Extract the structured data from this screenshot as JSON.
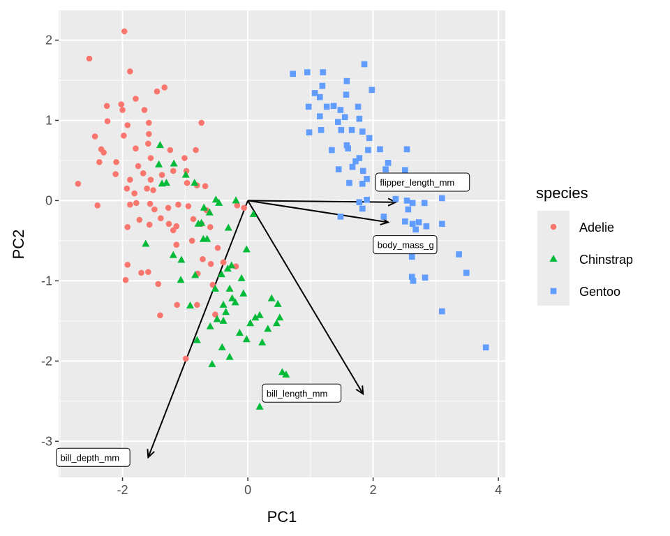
{
  "chart_data": {
    "type": "scatter",
    "xlabel": "PC1",
    "ylabel": "PC2",
    "xlim": [
      -3.02,
      4.11
    ],
    "ylim": [
      -3.45,
      2.37
    ],
    "xticks": [
      -2,
      0,
      2,
      4
    ],
    "yticks": [
      -3,
      -2,
      -1,
      0,
      1,
      2
    ],
    "grid": true,
    "legend": {
      "title": "species",
      "placement": "right"
    },
    "colors": {
      "panel": "#EBEBEB",
      "grid": "#FFFFFF",
      "arrow": "#000000"
    },
    "series": [
      {
        "name": "Adelie",
        "color": "#F8766D",
        "marker": "circle",
        "points": [
          [
            -1.97,
            2.11
          ],
          [
            -2.53,
            1.77
          ],
          [
            -1.88,
            1.61
          ],
          [
            -1.33,
            1.41
          ],
          [
            -1.45,
            1.36
          ],
          [
            -1.79,
            1.27
          ],
          [
            -2.25,
            1.18
          ],
          [
            -2.02,
            1.2
          ],
          [
            -2.0,
            1.13
          ],
          [
            -1.65,
            1.13
          ],
          [
            -2.24,
            0.99
          ],
          [
            -1.92,
            0.94
          ],
          [
            -1.58,
            0.97
          ],
          [
            -0.74,
            0.97
          ],
          [
            -2.44,
            0.8
          ],
          [
            -1.98,
            0.81
          ],
          [
            -1.58,
            0.83
          ],
          [
            -2.34,
            0.64
          ],
          [
            -2.3,
            0.6
          ],
          [
            -1.79,
            0.65
          ],
          [
            -1.59,
            0.71
          ],
          [
            -1.24,
            0.63
          ],
          [
            -0.83,
            0.63
          ],
          [
            -2.37,
            0.48
          ],
          [
            -2.1,
            0.48
          ],
          [
            -1.75,
            0.43
          ],
          [
            -1.55,
            0.53
          ],
          [
            -1.01,
            0.53
          ],
          [
            -2.71,
            0.21
          ],
          [
            -2.4,
            -0.06
          ],
          [
            -2.11,
            0.33
          ],
          [
            -1.88,
            0.26
          ],
          [
            -1.67,
            0.34
          ],
          [
            -1.55,
            0.26
          ],
          [
            -1.37,
            0.32
          ],
          [
            -1.19,
            0.37
          ],
          [
            -0.98,
            0.37
          ],
          [
            -1.93,
            0.15
          ],
          [
            -1.81,
            0.09
          ],
          [
            -1.61,
            0.15
          ],
          [
            -1.51,
            0.13
          ],
          [
            -0.97,
            0.22
          ],
          [
            -0.81,
            0.19
          ],
          [
            -0.68,
            0.18
          ],
          [
            -1.88,
            -0.05
          ],
          [
            -1.78,
            -0.03
          ],
          [
            -1.56,
            -0.04
          ],
          [
            -1.49,
            -0.11
          ],
          [
            -1.27,
            -0.09
          ],
          [
            -1.11,
            -0.05
          ],
          [
            -0.95,
            -0.07
          ],
          [
            -1.92,
            -0.33
          ],
          [
            -1.73,
            -0.24
          ],
          [
            -1.57,
            -0.3
          ],
          [
            -1.39,
            -0.22
          ],
          [
            -1.26,
            -0.29
          ],
          [
            -1.19,
            -0.37
          ],
          [
            -1.14,
            -0.32
          ],
          [
            -0.87,
            -0.23
          ],
          [
            -0.74,
            -0.29
          ],
          [
            -0.6,
            -0.33
          ],
          [
            -1.92,
            -0.8
          ],
          [
            -1.7,
            -0.9
          ],
          [
            -1.59,
            -0.89
          ],
          [
            -1.95,
            -0.99
          ],
          [
            -1.43,
            -1.04
          ],
          [
            -1.4,
            -1.43
          ],
          [
            -0.99,
            -1.97
          ],
          [
            -1.13,
            -1.3
          ],
          [
            -0.81,
            -1.3
          ],
          [
            -0.56,
            -1.05
          ],
          [
            -0.59,
            -0.79
          ],
          [
            -0.39,
            -0.77
          ],
          [
            -0.17,
            -0.06
          ],
          [
            -0.48,
            -0.59
          ],
          [
            -1.14,
            -0.55
          ],
          [
            -0.89,
            -0.5
          ],
          [
            -0.66,
            -0.12
          ],
          [
            -0.06,
            -0.09
          ],
          [
            -0.72,
            -0.73
          ],
          [
            -0.19,
            -0.82
          ],
          [
            -0.52,
            -1.42
          ],
          [
            -0.8,
            -0.91
          ]
        ]
      },
      {
        "name": "Chinstrap",
        "color": "#00BA38",
        "marker": "triangle",
        "points": [
          [
            -1.4,
            0.69
          ],
          [
            -1.42,
            0.45
          ],
          [
            -1.18,
            0.46
          ],
          [
            -1.37,
            0.21
          ],
          [
            -1.3,
            0.22
          ],
          [
            -0.99,
            0.32
          ],
          [
            -0.85,
            0.22
          ],
          [
            -0.51,
            0.01
          ],
          [
            -0.46,
            -0.03
          ],
          [
            -0.19,
            0
          ],
          [
            -0.7,
            -0.09
          ],
          [
            -0.61,
            -0.15
          ],
          [
            -0.74,
            -0.28
          ],
          [
            -0.79,
            -0.29
          ],
          [
            -0.31,
            -0.34
          ],
          [
            -0.71,
            -0.48
          ],
          [
            -0.65,
            -0.48
          ],
          [
            0.09,
            -0.17
          ],
          [
            -1.63,
            -0.54
          ],
          [
            -1.19,
            -0.68
          ],
          [
            -1.06,
            -0.74
          ],
          [
            -0.32,
            -0.85
          ],
          [
            -0.02,
            -0.61
          ],
          [
            -1.07,
            -0.99
          ],
          [
            -0.84,
            -0.93
          ],
          [
            -0.42,
            -0.92
          ],
          [
            -0.1,
            -0.97
          ],
          [
            -0.92,
            -1.31
          ],
          [
            -0.52,
            -1.1
          ],
          [
            -0.29,
            -1.1
          ],
          [
            -0.07,
            -1.16
          ],
          [
            -0.39,
            -1.3
          ],
          [
            -0.2,
            -1.27
          ],
          [
            -0.35,
            -1.39
          ],
          [
            -0.25,
            -1.22
          ],
          [
            -0.49,
            -1.48
          ],
          [
            -0.39,
            -1.5
          ],
          [
            -0.6,
            -1.57
          ],
          [
            -0.81,
            -1.74
          ],
          [
            -0.57,
            -2.04
          ],
          [
            -0.41,
            -1.83
          ],
          [
            -0.29,
            -1.95
          ],
          [
            0.04,
            -1.53
          ],
          [
            0.12,
            -1.46
          ],
          [
            0.19,
            -1.43
          ],
          [
            0.38,
            -1.22
          ],
          [
            0.48,
            -1.29
          ],
          [
            0.51,
            -1.46
          ],
          [
            0.46,
            -1.53
          ],
          [
            0.32,
            -1.6
          ],
          [
            -0.13,
            -1.65
          ],
          [
            -0.02,
            -1.73
          ],
          [
            0.23,
            -1.77
          ],
          [
            0.55,
            -2.14
          ],
          [
            0.61,
            -2.17
          ],
          [
            0.19,
            -2.57
          ],
          [
            -0.26,
            -0.81
          ]
        ]
      },
      {
        "name": "Gentoo",
        "color": "#619CFF",
        "marker": "square",
        "points": [
          [
            0.72,
            1.58
          ],
          [
            0.95,
            1.6
          ],
          [
            1.2,
            1.6
          ],
          [
            1.86,
            1.7
          ],
          [
            1.19,
            1.43
          ],
          [
            1.58,
            1.49
          ],
          [
            1.07,
            1.34
          ],
          [
            1.15,
            1.29
          ],
          [
            0.97,
            1.17
          ],
          [
            1.37,
            1.18
          ],
          [
            1.57,
            1.32
          ],
          [
            1.98,
            1.38
          ],
          [
            0.98,
            0.85
          ],
          [
            1.15,
            1.05
          ],
          [
            1.26,
            1.17
          ],
          [
            1.76,
            1.17
          ],
          [
            1.55,
            1.04
          ],
          [
            1.48,
            1.13
          ],
          [
            1.44,
            0.98
          ],
          [
            1.17,
            0.88
          ],
          [
            1.49,
            0.88
          ],
          [
            1.66,
            0.88
          ],
          [
            1.78,
            1.02
          ],
          [
            1.83,
            0.86
          ],
          [
            1.94,
            0.78
          ],
          [
            1.34,
            0.63
          ],
          [
            1.58,
            0.69
          ],
          [
            1.6,
            0.65
          ],
          [
            1.92,
            0.63
          ],
          [
            2.11,
            0.64
          ],
          [
            2.54,
            0.64
          ],
          [
            1.72,
            0.49
          ],
          [
            1.78,
            0.53
          ],
          [
            2.24,
            0.47
          ],
          [
            1.67,
            0.42
          ],
          [
            1.84,
            0.37
          ],
          [
            1.9,
            0.27
          ],
          [
            1.62,
            0.22
          ],
          [
            1.83,
            0.21
          ],
          [
            2.51,
            0.38
          ],
          [
            2.2,
            0.39
          ],
          [
            1.45,
            0.39
          ],
          [
            1.78,
            -0.02
          ],
          [
            1.9,
            0.01
          ],
          [
            1.83,
            -0.1
          ],
          [
            2.36,
            0.02
          ],
          [
            2.63,
            -0.03
          ],
          [
            2.82,
            -0.03
          ],
          [
            3.1,
            0.03
          ],
          [
            2.54,
            0
          ],
          [
            1.48,
            -0.2
          ],
          [
            2.17,
            -0.2
          ],
          [
            2.51,
            -0.26
          ],
          [
            2.63,
            -0.29
          ],
          [
            2.73,
            -0.27
          ],
          [
            2.85,
            -0.32
          ],
          [
            3.1,
            -0.29
          ],
          [
            2.68,
            -0.36
          ],
          [
            2.56,
            -0.11
          ],
          [
            3.37,
            -0.67
          ],
          [
            3.49,
            -0.9
          ],
          [
            2.62,
            -0.7
          ],
          [
            2.62,
            -0.95
          ],
          [
            2.64,
            -1.0
          ],
          [
            2.83,
            -0.96
          ],
          [
            3.1,
            -1.38
          ],
          [
            3.8,
            -1.83
          ],
          [
            2.35,
            0.17
          ],
          [
            2.84,
            0.22
          ]
        ]
      }
    ],
    "loadings": [
      {
        "label": "flipper_length_mm",
        "x": 2.36,
        "y": -0.02,
        "label_x": 2.79,
        "label_y": 0.23
      },
      {
        "label": "body_mass_g",
        "x": 2.24,
        "y": -0.27,
        "label_x": 2.51,
        "label_y": -0.55
      },
      {
        "label": "bill_length_mm",
        "x": 1.84,
        "y": -2.41,
        "label_x": 0.86,
        "label_y": -2.4
      },
      {
        "label": "bill_depth_mm",
        "x": -1.59,
        "y": -3.2,
        "label_x": -2.47,
        "label_y": -3.2
      }
    ]
  }
}
